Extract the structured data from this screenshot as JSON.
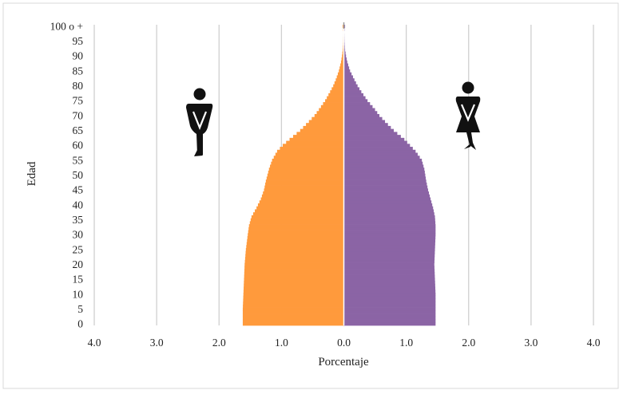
{
  "chart_data": {
    "type": "bar",
    "orientation": "horizontal",
    "layout": "population-pyramid",
    "title": "",
    "xlabel": "Porcentaje",
    "ylabel": "Edad",
    "xlim": [
      -4.0,
      4.0
    ],
    "x_tick_values": [
      -4,
      -3,
      -2,
      -1,
      0,
      1,
      2,
      3,
      4
    ],
    "x_tick_labels": [
      "4.0",
      "3.0",
      "2.0",
      "1.0",
      "0.0",
      "1.0",
      "2.0",
      "3.0",
      "4.0"
    ],
    "y_tick_labels": [
      "0",
      "5",
      "10",
      "15",
      "20",
      "25",
      "30",
      "35",
      "40",
      "45",
      "50",
      "55",
      "60",
      "65",
      "70",
      "75",
      "80",
      "85",
      "90",
      "95",
      "100 o +"
    ],
    "grid": "vertical",
    "legend": "none",
    "series": [
      {
        "side": "left",
        "color": "#FF9A3C",
        "icon": "male-figure-icon",
        "profile_age": [
          0,
          5,
          10,
          15,
          20,
          25,
          30,
          33,
          36,
          39,
          42,
          45,
          48,
          52,
          55,
          58,
          60,
          62,
          65,
          68,
          70,
          72,
          75,
          78,
          80,
          82,
          85,
          88,
          90,
          92,
          95,
          98,
          100
        ],
        "profile_value": [
          1.62,
          1.62,
          1.61,
          1.6,
          1.59,
          1.57,
          1.54,
          1.52,
          1.48,
          1.4,
          1.33,
          1.28,
          1.25,
          1.2,
          1.15,
          1.07,
          0.98,
          0.87,
          0.7,
          0.56,
          0.47,
          0.4,
          0.3,
          0.22,
          0.17,
          0.13,
          0.08,
          0.045,
          0.03,
          0.018,
          0.01,
          0.005,
          0.02
        ]
      },
      {
        "side": "right",
        "color": "#8B64A5",
        "icon": "female-figure-icon",
        "profile_age": [
          0,
          5,
          10,
          15,
          20,
          25,
          30,
          33,
          36,
          39,
          42,
          45,
          48,
          52,
          55,
          58,
          60,
          62,
          65,
          68,
          70,
          72,
          75,
          78,
          80,
          82,
          85,
          88,
          90,
          92,
          95,
          98,
          100
        ],
        "profile_value": [
          1.47,
          1.47,
          1.47,
          1.46,
          1.45,
          1.46,
          1.47,
          1.47,
          1.46,
          1.43,
          1.39,
          1.35,
          1.32,
          1.29,
          1.25,
          1.15,
          1.06,
          0.97,
          0.8,
          0.66,
          0.57,
          0.5,
          0.38,
          0.28,
          0.22,
          0.17,
          0.1,
          0.055,
          0.035,
          0.02,
          0.012,
          0.006,
          0.02
        ]
      }
    ]
  }
}
